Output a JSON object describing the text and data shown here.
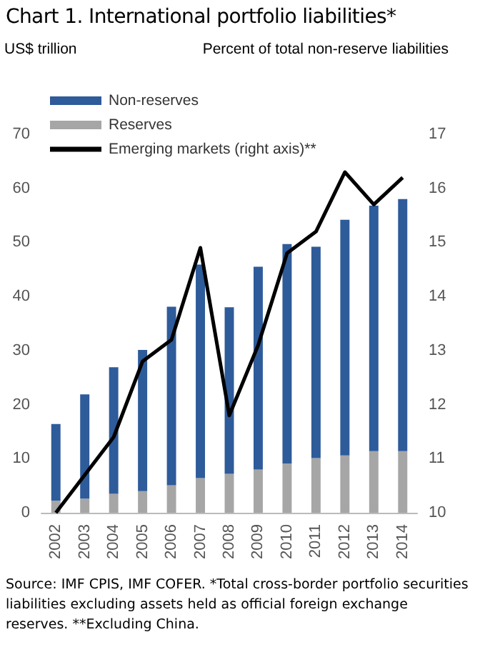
{
  "chart_data": {
    "type": "bar",
    "title": "Chart 1. International portfolio liabilities*",
    "ylabel": "US$ trillion",
    "y2label": "Percent of total non-reserve liabilities",
    "categories": [
      "2002",
      "2003",
      "2004",
      "2005",
      "2006",
      "2007",
      "2008",
      "2009",
      "2010",
      "2011",
      "2012",
      "2013",
      "2014"
    ],
    "stacked": true,
    "series": [
      {
        "name": "Reserves",
        "color": "#a6a6a6",
        "values": [
          2.2,
          2.6,
          3.5,
          4.0,
          5.1,
          6.4,
          7.2,
          8.0,
          9.1,
          10.1,
          10.6,
          11.4,
          11.4
        ]
      },
      {
        "name": "Non-reserves",
        "color": "#2e5b9a",
        "values": [
          14.2,
          19.3,
          23.4,
          26.1,
          33.0,
          39.5,
          30.8,
          37.5,
          40.6,
          39.1,
          43.6,
          45.4,
          46.6
        ]
      },
      {
        "name": "Emerging markets (right axis)**",
        "type": "line",
        "axis": "y2",
        "color": "#000000",
        "values": [
          10.0,
          10.7,
          11.4,
          12.8,
          13.2,
          14.9,
          11.8,
          13.1,
          14.8,
          15.2,
          16.3,
          15.7,
          16.2
        ]
      }
    ],
    "ylim": [
      0,
      70
    ],
    "yticks": [
      0,
      10,
      20,
      30,
      40,
      50,
      60,
      70
    ],
    "y2lim": [
      10,
      17
    ],
    "y2ticks": [
      10,
      11,
      12,
      13,
      14,
      15,
      16,
      17
    ],
    "grid": false,
    "legend": "top left",
    "marker": "none",
    "line_style": "solid",
    "annotations": [
      "Source:  IMF CPIS, IMF COFER. *Total cross-border portfolio securities liabilities excluding assets held as official  foreign exchange reserves. **Excluding  China."
    ]
  }
}
